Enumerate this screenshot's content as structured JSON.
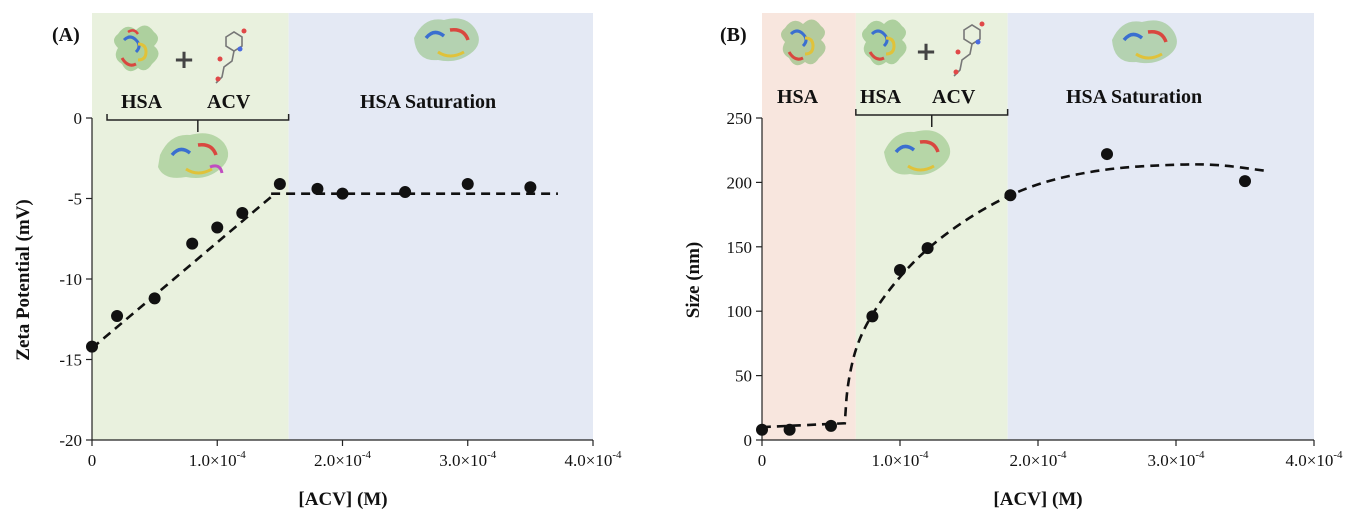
{
  "charts": [
    {
      "panel_label": "(A)",
      "x_unit_label": "[ACV] (M)",
      "y_unit_label": "Zeta Potential (mV)",
      "regions": [
        {
          "id": "green",
          "color": "#e9f1de",
          "x_from": 0,
          "x_to": 0.000157,
          "labels": [
            "HSA",
            "ACV"
          ]
        },
        {
          "id": "blue",
          "color": "#e4e9f4",
          "x_from": 0.000157,
          "x_to": 0.0004,
          "labels": [
            "HSA Saturation"
          ]
        }
      ],
      "bracket": {
        "x_from": 1.2e-05,
        "x_to": 0.000157
      }
    },
    {
      "panel_label": "(B)",
      "x_unit_label": "[ACV] (M)",
      "y_unit_label": "Size (nm)",
      "regions": [
        {
          "id": "pink",
          "color": "#f8e6de",
          "x_from": 0,
          "x_to": 6.8e-05,
          "labels": [
            "HSA"
          ]
        },
        {
          "id": "green",
          "color": "#e9f1de",
          "x_from": 6.8e-05,
          "x_to": 0.000178,
          "labels": [
            "HSA",
            "ACV"
          ]
        },
        {
          "id": "blue",
          "color": "#e4e9f4",
          "x_from": 0.000178,
          "x_to": 0.0004,
          "labels": [
            "HSA Saturation"
          ]
        }
      ],
      "bracket": {
        "x_from": 6.8e-05,
        "x_to": 0.000178
      }
    }
  ],
  "chart_data": [
    {
      "type": "scatter",
      "xlim": [
        0,
        0.0004
      ],
      "ylim": [
        -20,
        0
      ],
      "x_ticks": [
        0,
        0.0001,
        0.0002,
        0.0003,
        0.0004
      ],
      "x_tick_labels": [
        {
          "main": "0",
          "exp": ""
        },
        {
          "main": "1.0×10",
          "exp": "-4"
        },
        {
          "main": "2.0×10",
          "exp": "-4"
        },
        {
          "main": "3.0×10",
          "exp": "-4"
        },
        {
          "main": "4.0×10",
          "exp": "-4"
        }
      ],
      "y_ticks": [
        0,
        -5,
        -10,
        -15,
        -20
      ],
      "y_tick_labels": [
        "0",
        "-5",
        "-10",
        "-15",
        "-20"
      ],
      "xlabel": "[ACV] (M)",
      "ylabel": "Zeta Potential (mV)",
      "points": {
        "x": [
          0,
          2e-05,
          5e-05,
          8e-05,
          0.0001,
          0.00012,
          0.00015,
          0.00018,
          0.0002,
          0.00025,
          0.0003,
          0.00035
        ],
        "y": [
          -14.2,
          -12.3,
          -11.2,
          -7.8,
          -6.8,
          -5.9,
          -4.1,
          -4.4,
          -4.7,
          -4.6,
          -4.1,
          -4.3
        ]
      },
      "fit_lines": [
        {
          "style": "dashed",
          "x": [
            0,
            0.000143
          ],
          "y": [
            -14.3,
            -4.9
          ]
        },
        {
          "style": "dashed",
          "x": [
            0.000143,
            0.000372
          ],
          "y": [
            -4.7,
            -4.7
          ]
        }
      ]
    },
    {
      "type": "scatter",
      "xlim": [
        0,
        0.0004
      ],
      "ylim": [
        0,
        250
      ],
      "x_ticks": [
        0,
        0.0001,
        0.0002,
        0.0003,
        0.0004
      ],
      "x_tick_labels": [
        {
          "main": "0",
          "exp": ""
        },
        {
          "main": "1.0×10",
          "exp": "-4"
        },
        {
          "main": "2.0×10",
          "exp": "-4"
        },
        {
          "main": "3.0×10",
          "exp": "-4"
        },
        {
          "main": "4.0×10",
          "exp": "-4"
        }
      ],
      "y_ticks": [
        0,
        50,
        100,
        150,
        200,
        250
      ],
      "y_tick_labels": [
        "0",
        "50",
        "100",
        "150",
        "200",
        "250"
      ],
      "xlabel": "[ACV] (M)",
      "ylabel": "Size (nm)",
      "points": {
        "x": [
          0,
          2e-05,
          5e-05,
          8e-05,
          0.0001,
          0.00012,
          0.00018,
          0.00025,
          0.00035
        ],
        "y": [
          8,
          8,
          11,
          96,
          132,
          149,
          190,
          222,
          201
        ]
      },
      "fit_lines": [
        {
          "style": "dashed",
          "x": [
            0,
            6e-05,
            6e-05,
            6.2e-05,
            7e-05,
            9e-05,
            0.00012,
            0.00016,
            0.0002,
            0.00025,
            0.0003,
            0.00033,
            0.000365
          ],
          "y": [
            10,
            13,
            13,
            45,
            80,
            115,
            150,
            180,
            200,
            211,
            214,
            214,
            209
          ]
        }
      ]
    }
  ]
}
